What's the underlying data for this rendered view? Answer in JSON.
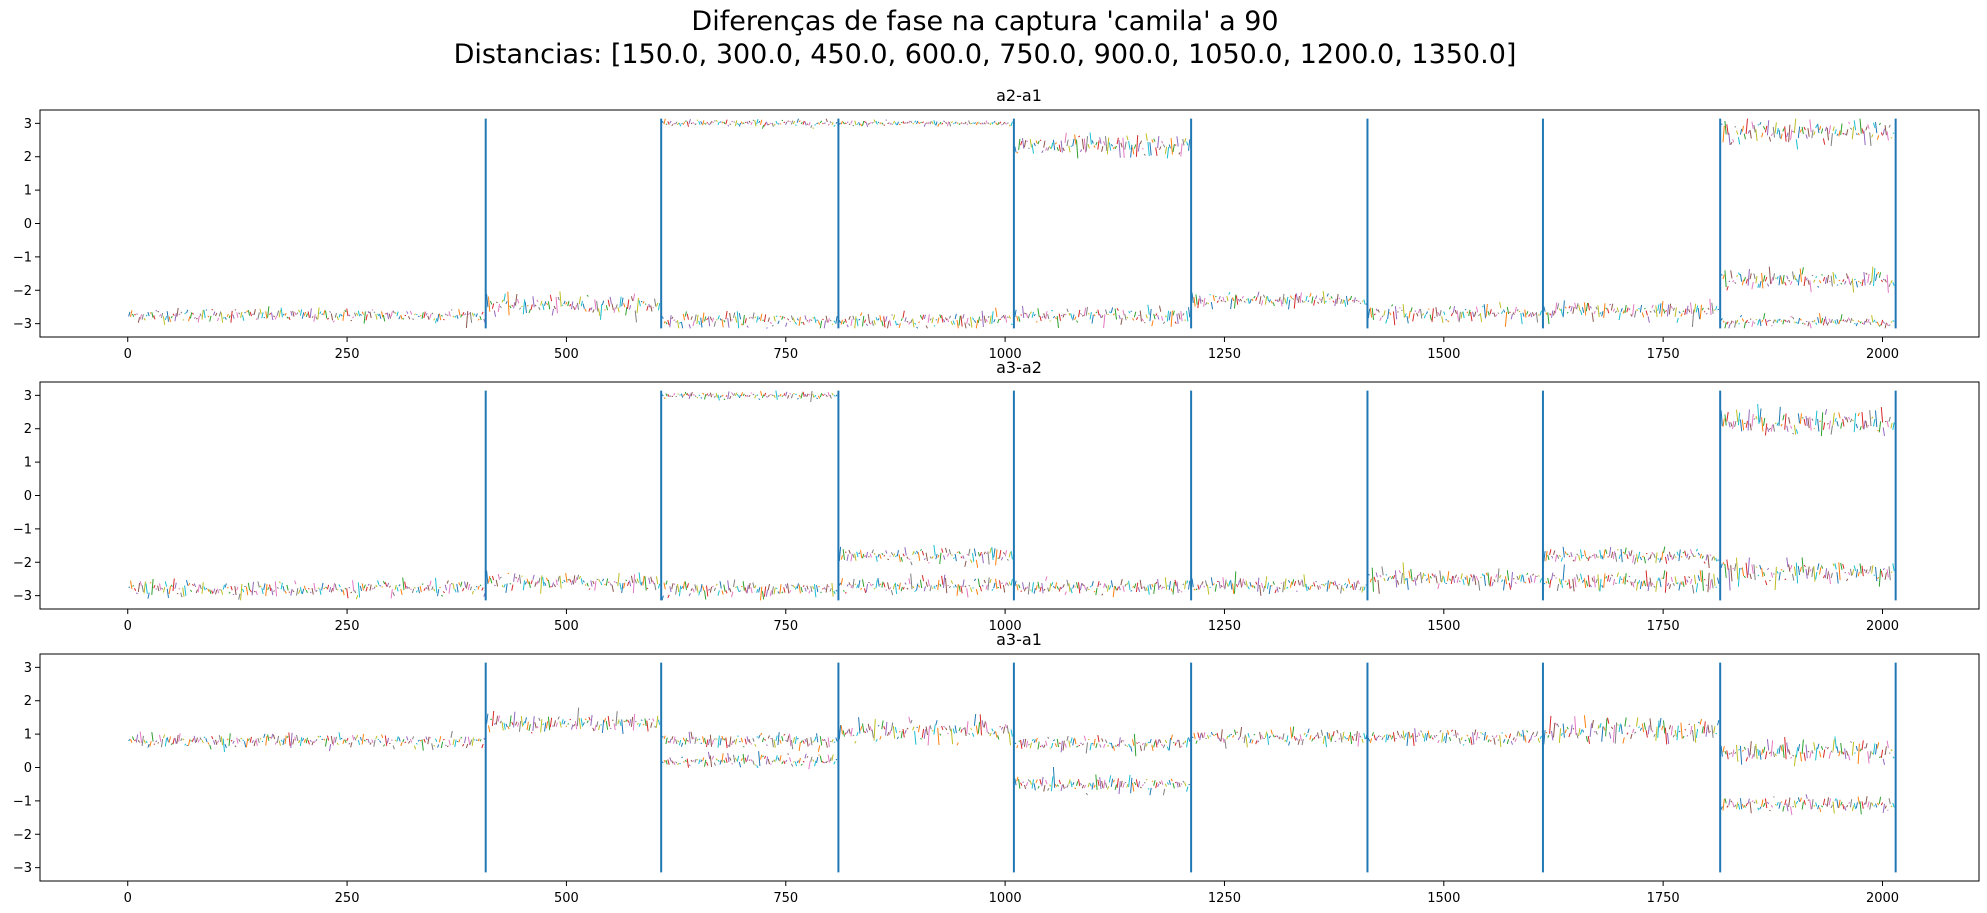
{
  "suptitle": {
    "line1": "Diferenças de fase na captura 'camila' a 90",
    "line2": "Distancias: [150.0, 300.0, 450.0, 600.0, 750.0, 900.0, 1050.0, 1200.0, 1350.0]"
  },
  "colors": {
    "boundary": "#1f77b4",
    "palette": [
      "#1f77b4",
      "#ff7f0e",
      "#2ca02c",
      "#d62728",
      "#9467bd",
      "#8c564b",
      "#e377c2",
      "#7f7f7f",
      "#bcbd22",
      "#17becf"
    ]
  },
  "chart_data": [
    {
      "type": "line",
      "title": "a2-a1",
      "xlim": [
        -100,
        2110
      ],
      "ylim": [
        -3.4,
        3.4
      ],
      "xticks": [
        0,
        250,
        500,
        750,
        1000,
        1250,
        1500,
        1750,
        2000
      ],
      "yticks": [
        -3,
        -2,
        -1,
        0,
        1,
        2,
        3
      ],
      "boundaries": [
        0,
        408,
        608,
        810,
        1010,
        1212,
        1413,
        1613,
        1815,
        2015
      ],
      "segment_bands": [
        [
          [
            -2.75,
            0.18
          ]
        ],
        [
          [
            -2.45,
            0.25
          ]
        ],
        [
          [
            -2.9,
            0.2
          ],
          [
            3.0,
            0.1
          ]
        ],
        [
          [
            -2.9,
            0.2
          ],
          [
            3.0,
            0.08
          ]
        ],
        [
          [
            -2.75,
            0.22
          ],
          [
            2.3,
            0.3
          ]
        ],
        [
          [
            -2.3,
            0.2
          ]
        ],
        [
          [
            -2.7,
            0.22
          ]
        ],
        [
          [
            -2.6,
            0.22
          ]
        ],
        [
          [
            2.75,
            0.3
          ],
          [
            -1.7,
            0.25
          ],
          [
            -2.95,
            0.15
          ]
        ]
      ],
      "series": [
        {
          "values_note": "",
          "x_range": [
            0,
            2015
          ],
          "y_range": [
            -3.14,
            3.14
          ]
        }
      ]
    },
    {
      "type": "line",
      "title": "a3-a2",
      "xlim": [
        -100,
        2110
      ],
      "ylim": [
        -3.4,
        3.4
      ],
      "xticks": [
        0,
        250,
        500,
        750,
        1000,
        1250,
        1500,
        1750,
        2000
      ],
      "yticks": [
        -3,
        -2,
        -1,
        0,
        1,
        2,
        3
      ],
      "boundaries": [
        0,
        408,
        608,
        810,
        1010,
        1212,
        1413,
        1613,
        1815,
        2015
      ],
      "segment_bands": [
        [
          [
            -2.8,
            0.2
          ]
        ],
        [
          [
            -2.6,
            0.22
          ]
        ],
        [
          [
            -2.8,
            0.22
          ],
          [
            3.0,
            0.1
          ]
        ],
        [
          [
            -2.7,
            0.22
          ],
          [
            -1.8,
            0.2
          ]
        ],
        [
          [
            -2.75,
            0.2
          ]
        ],
        [
          [
            -2.7,
            0.2
          ]
        ],
        [
          [
            -2.5,
            0.25
          ]
        ],
        [
          [
            -2.6,
            0.25
          ],
          [
            -1.8,
            0.2
          ]
        ],
        [
          [
            2.2,
            0.35
          ],
          [
            -2.3,
            0.3
          ]
        ]
      ],
      "series": [
        {
          "values_note": "",
          "x_range": [
            0,
            2015
          ],
          "y_range": [
            -3.14,
            3.14
          ]
        }
      ]
    },
    {
      "type": "line",
      "title": "a3-a1",
      "xlim": [
        -100,
        2110
      ],
      "ylim": [
        -3.4,
        3.4
      ],
      "xticks": [
        0,
        250,
        500,
        750,
        1000,
        1250,
        1500,
        1750,
        2000
      ],
      "yticks": [
        -3,
        -2,
        -1,
        0,
        1,
        2,
        3
      ],
      "boundaries": [
        0,
        408,
        608,
        810,
        1010,
        1212,
        1413,
        1613,
        1815,
        2015
      ],
      "segment_bands": [
        [
          [
            0.8,
            0.18
          ]
        ],
        [
          [
            1.3,
            0.25
          ]
        ],
        [
          [
            0.8,
            0.2
          ],
          [
            0.2,
            0.15
          ]
        ],
        [
          [
            1.1,
            0.3
          ]
        ],
        [
          [
            0.7,
            0.2
          ],
          [
            -0.5,
            0.2
          ]
        ],
        [
          [
            0.9,
            0.2
          ]
        ],
        [
          [
            0.9,
            0.2
          ]
        ],
        [
          [
            1.1,
            0.3
          ]
        ],
        [
          [
            0.5,
            0.3
          ],
          [
            -1.1,
            0.2
          ]
        ]
      ],
      "series": [
        {
          "values_note": "",
          "x_range": [
            0,
            2015
          ],
          "y_range": [
            -3.14,
            3.14
          ]
        }
      ]
    }
  ]
}
